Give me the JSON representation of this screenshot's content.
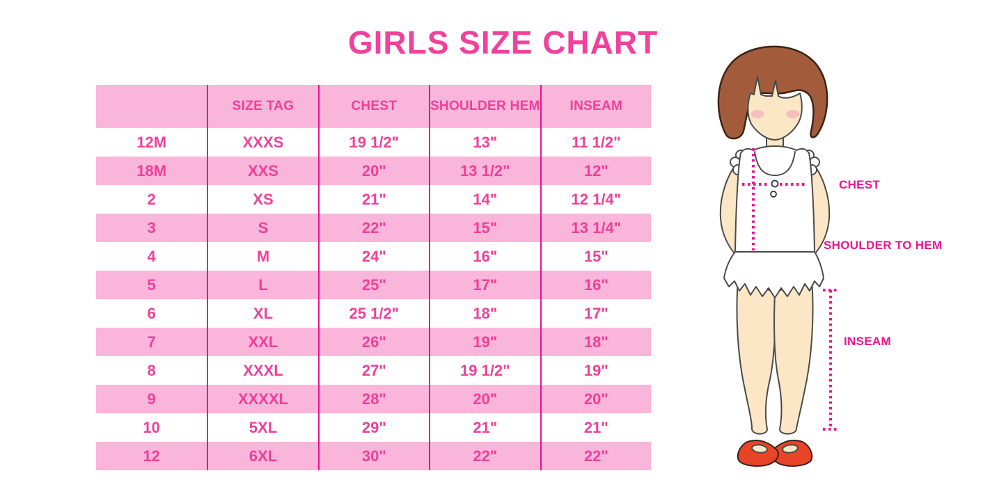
{
  "title": "GIRLS SIZE CHART",
  "table": {
    "headers": [
      "",
      "SIZE TAG",
      "CHEST",
      "SHOULDER HEM",
      "INSEAM"
    ],
    "rows": [
      [
        "12M",
        "XXXS",
        "19 1/2\"",
        "13\"",
        "11 1/2\""
      ],
      [
        "18M",
        "XXS",
        "20\"",
        "13 1/2\"",
        "12\""
      ],
      [
        "2",
        "XS",
        "21\"",
        "14\"",
        "12 1/4\""
      ],
      [
        "3",
        "S",
        "22\"",
        "15\"",
        "13 1/4\""
      ],
      [
        "4",
        "M",
        "24\"",
        "16\"",
        "15\""
      ],
      [
        "5",
        "L",
        "25\"",
        "17\"",
        "16\""
      ],
      [
        "6",
        "XL",
        "25 1/2\"",
        "18\"",
        "17\""
      ],
      [
        "7",
        "XXL",
        "26\"",
        "19\"",
        "18\""
      ],
      [
        "8",
        "XXXL",
        "27\"",
        "19 1/2\"",
        "19\""
      ],
      [
        "9",
        "XXXXL",
        "28\"",
        "20\"",
        "20\""
      ],
      [
        "10",
        "5XL",
        "29\"",
        "21\"",
        "21\""
      ],
      [
        "12",
        "6XL",
        "30\"",
        "22\"",
        "22\""
      ]
    ]
  },
  "figure": {
    "labels": {
      "chest": "CHEST",
      "shoulder_to_hem": "SHOULDER TO HEM",
      "inseam": "INSEAM"
    }
  },
  "colors": {
    "title_pink": "#F0419B",
    "row_pink": "#FAB5DA",
    "line_magenta": "#E8138B",
    "text_pink": "#EE4099",
    "label_magenta": "#EC1590",
    "hair_brown": "#A25C3C",
    "hair_outline": "#3A2316",
    "skin": "#FBE7C5",
    "blush": "#F5A8B8",
    "outline_gray": "#4A4A4A",
    "shoe_red": "#E84428"
  }
}
